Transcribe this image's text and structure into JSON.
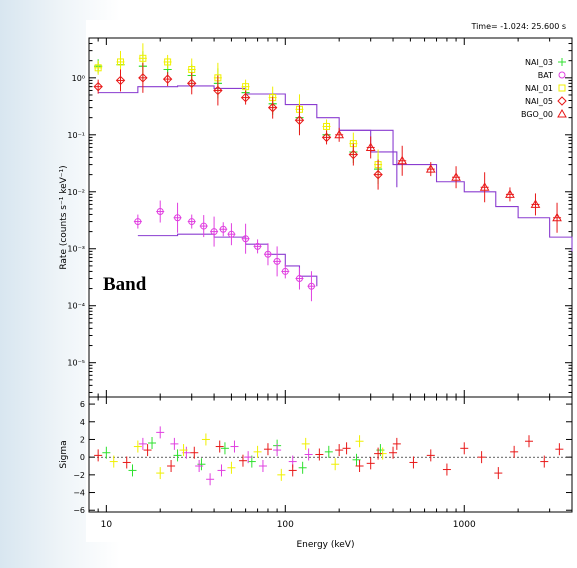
{
  "header": {
    "time_range": "Time= -1.024: 25.600 s"
  },
  "annotation": {
    "model": "Band"
  },
  "colors": {
    "NAI_03": "#2ee02e",
    "BAT": "#e040e0",
    "NAI_01": "#f0f000",
    "NAI_05": "#e81818",
    "BGO_00": "#e81818",
    "model": "#8a3cd0"
  },
  "chart_data": [
    {
      "type": "scatter",
      "xlabel": "Energy (keV)",
      "ylabel": "Rate (counts s⁻¹ keV⁻¹)",
      "xscale": "log",
      "yscale": "log",
      "xlim": [
        8,
        4000
      ],
      "ylim": [
        2.5e-06,
        5
      ],
      "xticks": [
        "10",
        "100",
        "1000"
      ],
      "yticks": [
        "10⁰",
        "10⁻¹",
        "10⁻²",
        "10⁻³",
        "10⁻⁴",
        "10⁻⁵"
      ],
      "legend": {
        "placement": "top-right",
        "entries": [
          "NAI_03",
          "BAT",
          "NAI_01",
          "NAI_05",
          "BGO_00"
        ]
      },
      "series": [
        {
          "name": "NAI_03",
          "symbol": "+",
          "color": "#2ee02e",
          "x": [
            9,
            12,
            16,
            22,
            30,
            42,
            60,
            85,
            120,
            170,
            240,
            330
          ],
          "y": [
            1.6,
            1.7,
            1.6,
            1.4,
            1.1,
            0.8,
            0.55,
            0.35,
            0.2,
            0.1,
            0.05,
            0.025
          ]
        },
        {
          "name": "BAT",
          "symbol": "○",
          "color": "#e040e0",
          "x": [
            15,
            20,
            25,
            30,
            35,
            40,
            45,
            50,
            60,
            70,
            80,
            90,
            100,
            120,
            140
          ],
          "y": [
            0.003,
            0.0045,
            0.0035,
            0.003,
            0.0025,
            0.002,
            0.0022,
            0.0018,
            0.0015,
            0.0011,
            0.0008,
            0.0006,
            0.0004,
            0.0003,
            0.00022
          ]
        },
        {
          "name": "NAI_01",
          "symbol": "□",
          "color": "#f0f000",
          "x": [
            9,
            12,
            16,
            22,
            30,
            42,
            60,
            85,
            120,
            170,
            240,
            330
          ],
          "y": [
            1.5,
            1.9,
            2.2,
            1.9,
            1.4,
            1.0,
            0.7,
            0.45,
            0.28,
            0.14,
            0.07,
            0.03
          ]
        },
        {
          "name": "NAI_05",
          "symbol": "◇",
          "color": "#e81818",
          "x": [
            9,
            12,
            16,
            22,
            30,
            42,
            60,
            85,
            120,
            170,
            240,
            330
          ],
          "y": [
            0.7,
            0.9,
            1.0,
            0.95,
            0.8,
            0.6,
            0.45,
            0.3,
            0.18,
            0.09,
            0.045,
            0.02
          ]
        },
        {
          "name": "BGO_00",
          "symbol": "△",
          "color": "#e81818",
          "x": [
            200,
            300,
            450,
            650,
            900,
            1300,
            1800,
            2500,
            3300
          ],
          "y": [
            0.1,
            0.06,
            0.035,
            0.025,
            0.018,
            0.012,
            0.009,
            0.006,
            0.0035
          ]
        }
      ],
      "model_curves": [
        {
          "x": [
            9,
            15,
            25,
            40,
            60,
            100,
            150,
            200,
            300,
            420
          ],
          "y": [
            0.55,
            0.7,
            0.72,
            0.65,
            0.52,
            0.34,
            0.2,
            0.12,
            0.05,
            0.012
          ]
        },
        {
          "x": [
            15,
            25,
            40,
            60,
            80,
            100,
            120,
            150
          ],
          "y": [
            0.0017,
            0.0018,
            0.0016,
            0.0012,
            0.0008,
            0.0005,
            0.00033,
            0.00022
          ]
        },
        {
          "x": [
            200,
            400,
            700,
            1000,
            1500,
            2000,
            3000,
            4000
          ],
          "y": [
            0.12,
            0.03,
            0.015,
            0.01,
            0.0055,
            0.0035,
            0.0016,
            0.0009
          ]
        }
      ]
    },
    {
      "type": "scatter",
      "ylabel": "Sigma",
      "xscale": "log",
      "xlim": [
        8,
        4000
      ],
      "ylim": [
        -6.2,
        6.8
      ],
      "yticks": [
        "6",
        "4",
        "2",
        "0",
        "−2",
        "−4",
        "−6"
      ],
      "series": [
        {
          "name": "NAI_03",
          "color": "#2ee02e",
          "x": [
            10,
            14,
            18,
            25,
            34,
            46,
            65,
            90,
            125,
            175,
            250,
            340
          ],
          "y": [
            0.5,
            -1.5,
            1.6,
            0.2,
            -0.8,
            1.0,
            -0.5,
            1.3,
            -1.2,
            0.6,
            -0.3,
            0.8
          ]
        },
        {
          "name": "BAT",
          "color": "#e040e0",
          "x": [
            16,
            20,
            24,
            28,
            33,
            38,
            44,
            52,
            62,
            75,
            90,
            110,
            135
          ],
          "y": [
            1.5,
            2.8,
            1.5,
            0.5,
            -1.0,
            -2.5,
            -1.5,
            1.2,
            0.0,
            -1.0,
            0.8,
            -0.5,
            0.3
          ]
        },
        {
          "name": "NAI_01",
          "color": "#f0f000",
          "x": [
            11,
            15,
            20,
            27,
            36,
            50,
            70,
            95,
            130,
            190,
            260,
            350
          ],
          "y": [
            -0.5,
            1.2,
            -1.8,
            0.8,
            2.0,
            -1.2,
            0.6,
            -2.0,
            1.5,
            -0.8,
            1.8,
            0.4
          ]
        },
        {
          "name": "NAI_05",
          "color": "#e81818",
          "x": [
            9,
            13,
            17,
            23,
            31,
            43,
            58,
            80,
            110,
            155,
            220,
            300,
            400
          ],
          "y": [
            0.2,
            -0.6,
            0.8,
            -1.0,
            0.5,
            1.2,
            -0.4,
            0.9,
            -1.5,
            0.3,
            1.0,
            -0.7,
            0.5
          ]
        },
        {
          "name": "BGO_00",
          "color": "#e81818",
          "x": [
            200,
            260,
            330,
            420,
            520,
            650,
            800,
            1000,
            1250,
            1550,
            1900,
            2300,
            2800,
            3400
          ],
          "y": [
            0.8,
            -1.0,
            0.4,
            1.5,
            -0.6,
            0.2,
            -1.4,
            1.0,
            0.0,
            -1.8,
            0.6,
            1.8,
            -0.5,
            0.9
          ]
        }
      ]
    }
  ]
}
